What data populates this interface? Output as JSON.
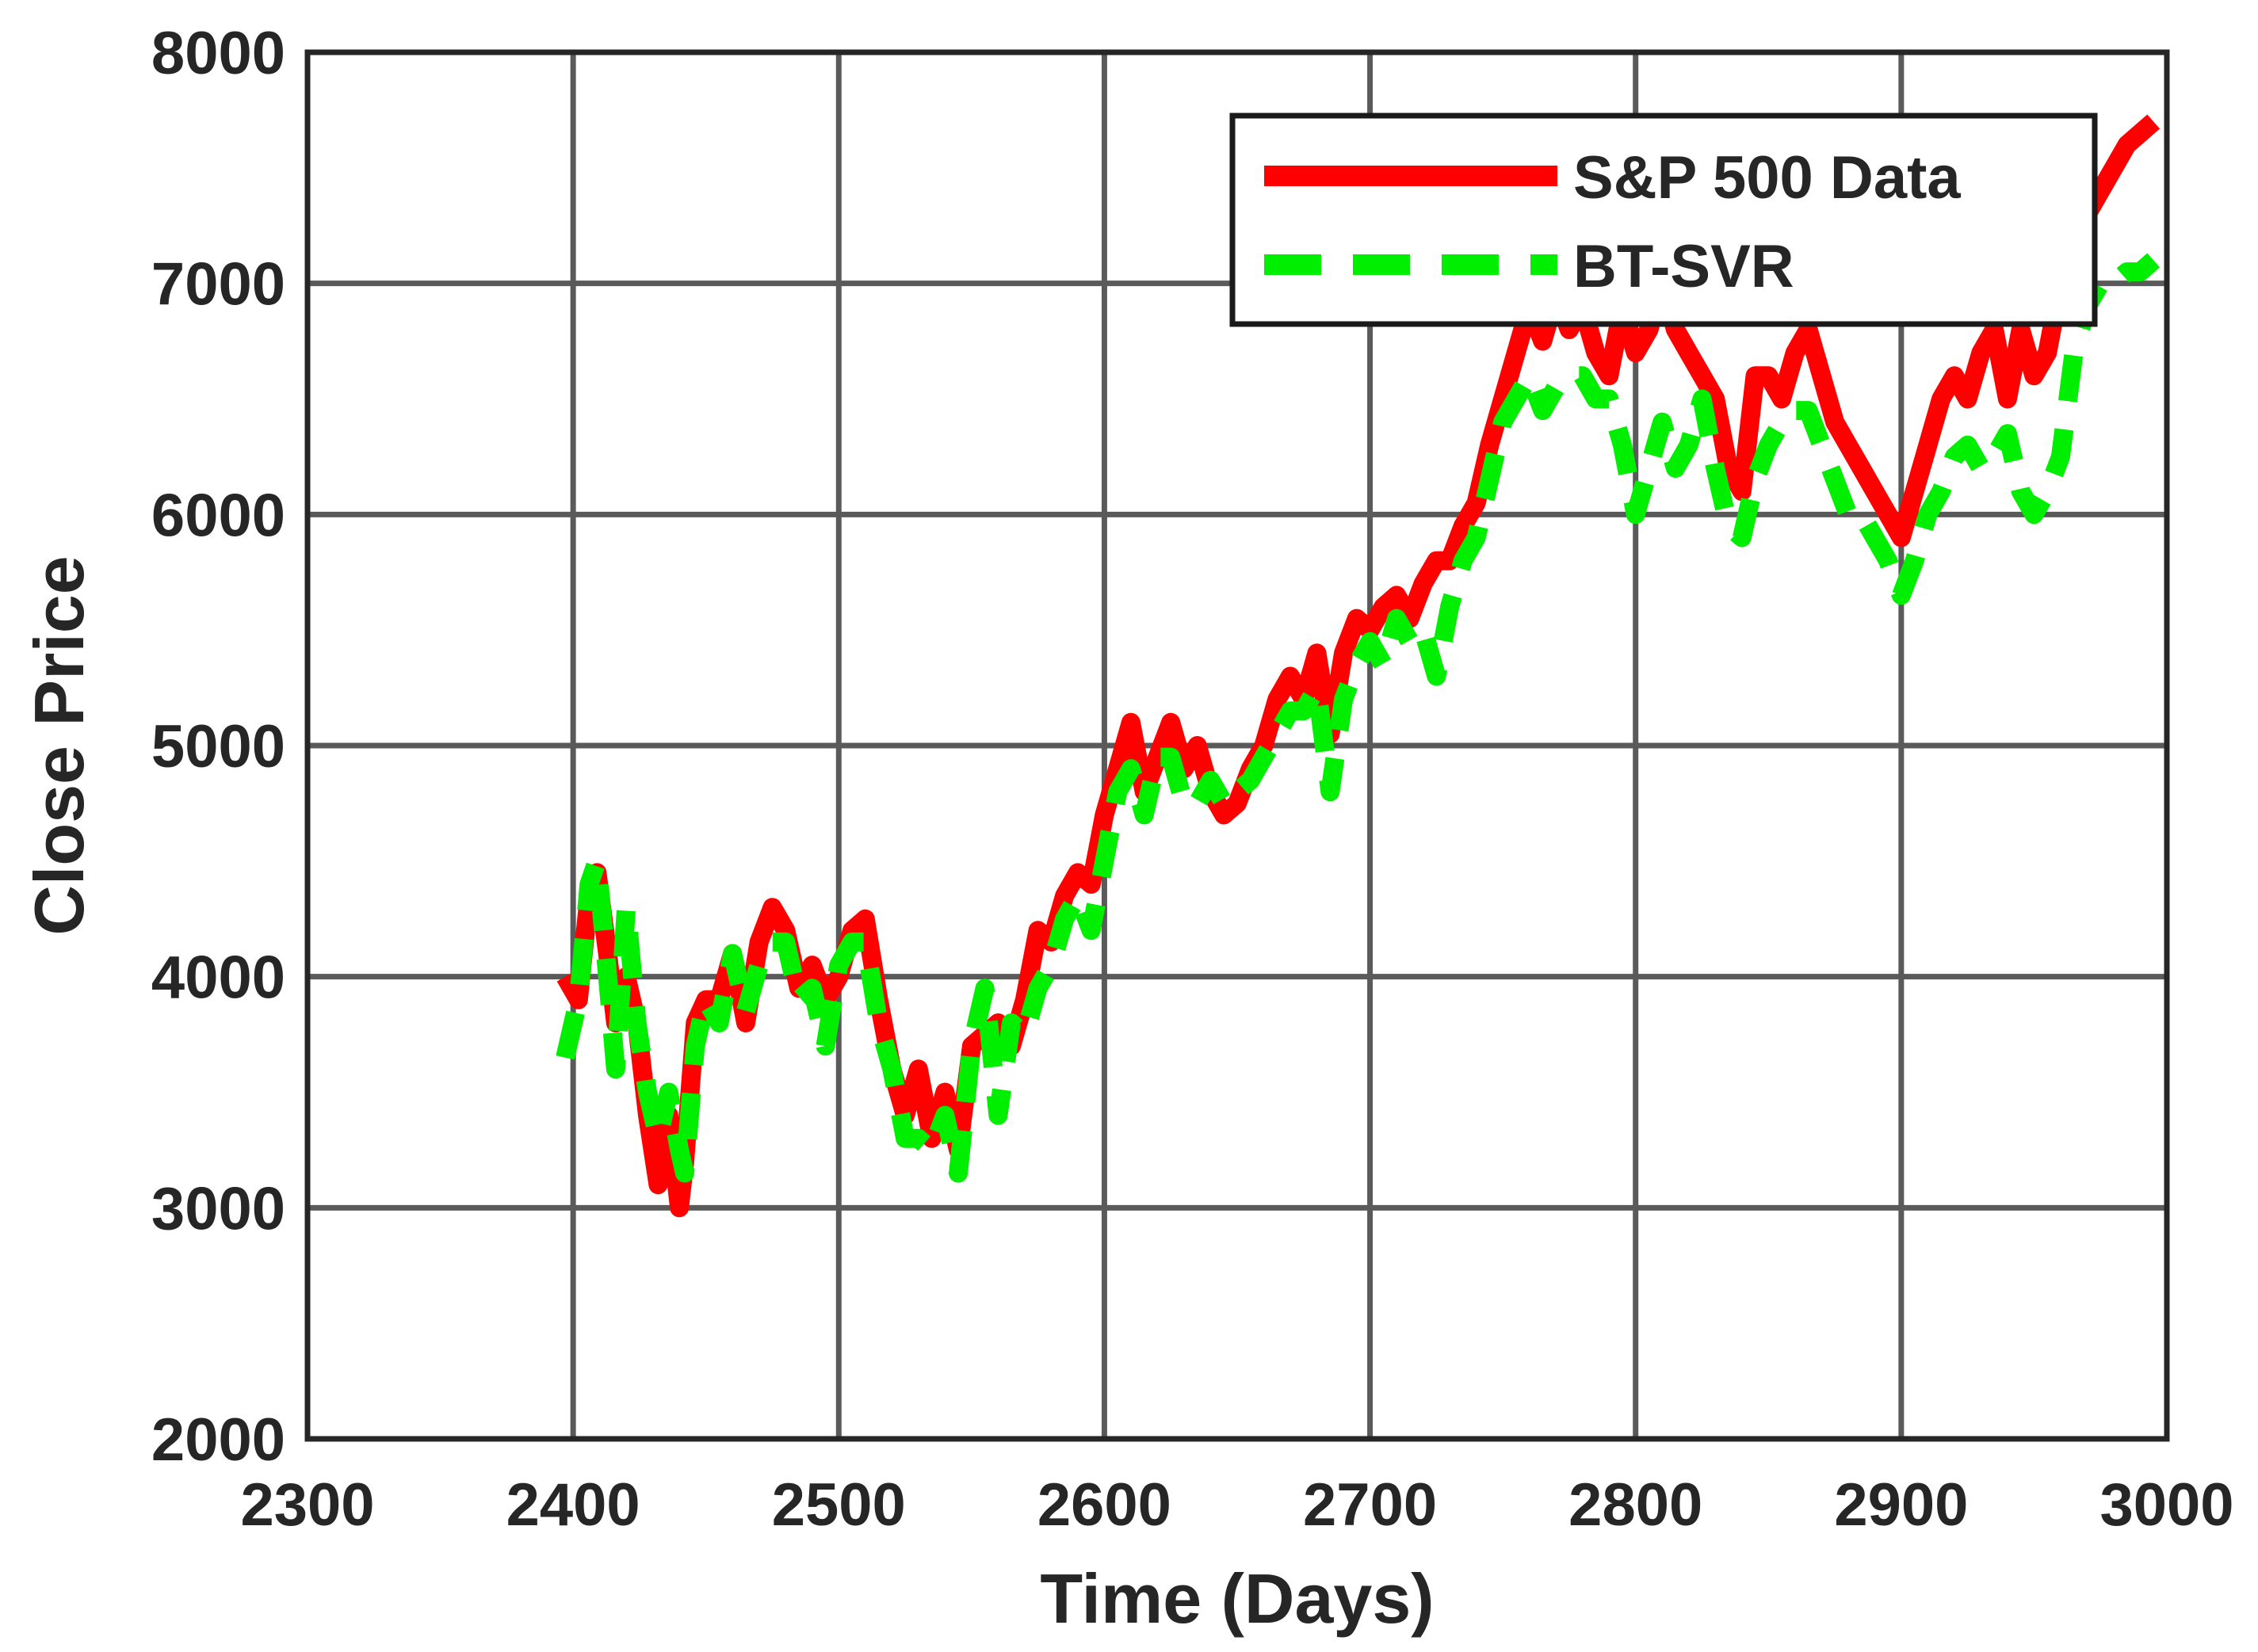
{
  "chart_data": {
    "type": "line",
    "title": "",
    "xlabel": "Time (Days)",
    "ylabel": "Close Price",
    "xlim": [
      2300,
      3000
    ],
    "ylim": [
      2000,
      8000
    ],
    "xticks": [
      2300,
      2400,
      2500,
      2600,
      2700,
      2800,
      2900,
      3000
    ],
    "yticks": [
      2000,
      3000,
      4000,
      5000,
      6000,
      7000,
      8000
    ],
    "xtick_labels": [
      "2300",
      "2400",
      "2500",
      "2600",
      "2700",
      "2800",
      "2900",
      "3000"
    ],
    "ytick_labels": [
      "2000",
      "3000",
      "4000",
      "5000",
      "6000",
      "7000",
      "8000"
    ],
    "grid": true,
    "legend_position": "top-right",
    "series": [
      {
        "name": "S&P 500 Data",
        "color": "#ff0000",
        "style": "solid",
        "x": [
          2397,
          2402,
          2406,
          2409,
          2413,
          2416,
          2420,
          2424,
          2428,
          2432,
          2436,
          2440,
          2442,
          2446,
          2450,
          2455,
          2460,
          2465,
          2470,
          2475,
          2480,
          2485,
          2490,
          2495,
          2500,
          2505,
          2510,
          2515,
          2520,
          2525,
          2530,
          2535,
          2540,
          2545,
          2550,
          2555,
          2560,
          2565,
          2570,
          2575,
          2580,
          2585,
          2590,
          2595,
          2600,
          2605,
          2610,
          2615,
          2620,
          2625,
          2630,
          2635,
          2640,
          2645,
          2650,
          2655,
          2660,
          2665,
          2670,
          2675,
          2680,
          2685,
          2690,
          2695,
          2700,
          2705,
          2710,
          2715,
          2720,
          2725,
          2730,
          2735,
          2740,
          2745,
          2750,
          2755,
          2760,
          2765,
          2770,
          2775,
          2780,
          2785,
          2790,
          2795,
          2800,
          2805,
          2810,
          2815,
          2820,
          2825,
          2830,
          2835,
          2840,
          2845,
          2850,
          2855,
          2860,
          2865,
          2870,
          2875,
          2880,
          2885,
          2890,
          2895,
          2900,
          2905,
          2910,
          2915,
          2920,
          2925,
          2930,
          2935,
          2940,
          2945,
          2950,
          2955,
          2960,
          2965,
          2970,
          2975,
          2980,
          2985,
          2990,
          2995
        ],
        "y": [
          4000,
          3900,
          4350,
          4450,
          4100,
          3800,
          4000,
          3800,
          3400,
          3100,
          3400,
          3000,
          3200,
          3800,
          3900,
          3900,
          4100,
          3800,
          4150,
          4300,
          4200,
          3950,
          4050,
          3900,
          4000,
          4200,
          4250,
          3900,
          3600,
          3400,
          3600,
          3300,
          3500,
          3250,
          3700,
          3750,
          3800,
          3700,
          3900,
          4200,
          4150,
          4350,
          4450,
          4400,
          4700,
          4900,
          5100,
          4800,
          4950,
          5100,
          4900,
          5000,
          4800,
          4700,
          4750,
          4900,
          5000,
          5200,
          5300,
          5200,
          5400,
          5050,
          5400,
          5550,
          5500,
          5600,
          5650,
          5550,
          5700,
          5800,
          5800,
          5950,
          6050,
          6300,
          6500,
          6700,
          6900,
          6750,
          6950,
          6800,
          6900,
          6700,
          6600,
          6900,
          6700,
          6800,
          7000,
          6800,
          6700,
          6600,
          6500,
          6200,
          6100,
          6600,
          6600,
          6500,
          6700,
          6800,
          6600,
          6400,
          6300,
          6200,
          6100,
          6000,
          5900,
          6100,
          6300,
          6500,
          6600,
          6500,
          6700,
          6800,
          6500,
          6800,
          6600,
          6700,
          7000,
          7200,
          7300,
          7400,
          7500,
          7600,
          7650,
          7700
        ]
      },
      {
        "name": "BT-SVR",
        "color": "#00ee00",
        "style": "dashed",
        "x": [
          2397,
          2402,
          2406,
          2409,
          2413,
          2416,
          2420,
          2424,
          2428,
          2432,
          2436,
          2440,
          2442,
          2446,
          2450,
          2455,
          2460,
          2465,
          2470,
          2475,
          2480,
          2485,
          2490,
          2495,
          2500,
          2505,
          2510,
          2515,
          2520,
          2525,
          2530,
          2535,
          2540,
          2545,
          2550,
          2555,
          2560,
          2565,
          2570,
          2575,
          2580,
          2585,
          2590,
          2595,
          2600,
          2605,
          2610,
          2615,
          2620,
          2625,
          2630,
          2635,
          2640,
          2645,
          2650,
          2655,
          2660,
          2665,
          2670,
          2675,
          2680,
          2685,
          2690,
          2695,
          2700,
          2705,
          2710,
          2715,
          2720,
          2725,
          2730,
          2735,
          2740,
          2745,
          2750,
          2755,
          2760,
          2765,
          2770,
          2775,
          2780,
          2785,
          2790,
          2795,
          2800,
          2805,
          2810,
          2815,
          2820,
          2825,
          2830,
          2835,
          2840,
          2845,
          2850,
          2855,
          2860,
          2865,
          2870,
          2875,
          2880,
          2885,
          2890,
          2895,
          2900,
          2905,
          2910,
          2915,
          2920,
          2925,
          2930,
          2935,
          2940,
          2945,
          2950,
          2955,
          2960,
          2965,
          2970,
          2975,
          2980,
          2985,
          2990,
          2995
        ],
        "y": [
          3650,
          3900,
          4400,
          4500,
          4000,
          3600,
          4300,
          3800,
          3500,
          3300,
          3500,
          3250,
          3150,
          3700,
          3900,
          3800,
          4100,
          3850,
          4050,
          4150,
          4150,
          3900,
          3950,
          3700,
          4050,
          4150,
          4150,
          3800,
          3600,
          3300,
          3300,
          3250,
          3400,
          3150,
          3700,
          3950,
          3400,
          3800,
          3750,
          3950,
          4050,
          4250,
          4350,
          4200,
          4500,
          4800,
          4900,
          4700,
          4950,
          4950,
          4750,
          4750,
          4850,
          4750,
          4800,
          4850,
          4950,
          5050,
          5150,
          5150,
          5250,
          4800,
          5200,
          5350,
          5450,
          5350,
          5550,
          5450,
          5500,
          5300,
          5600,
          5800,
          5900,
          6150,
          6400,
          6500,
          6600,
          6450,
          6550,
          6600,
          6600,
          6500,
          6500,
          6300,
          6000,
          6200,
          6400,
          6200,
          6300,
          6500,
          6200,
          5950,
          5900,
          6150,
          6300,
          6400,
          6450,
          6450,
          6300,
          6150,
          6000,
          6000,
          5900,
          5800,
          5650,
          5800,
          6000,
          6100,
          6250,
          6300,
          6200,
          6250,
          6350,
          6100,
          6000,
          6100,
          6250,
          6700,
          6900,
          7000,
          7000,
          7050,
          7050,
          7100
        ]
      }
    ]
  }
}
